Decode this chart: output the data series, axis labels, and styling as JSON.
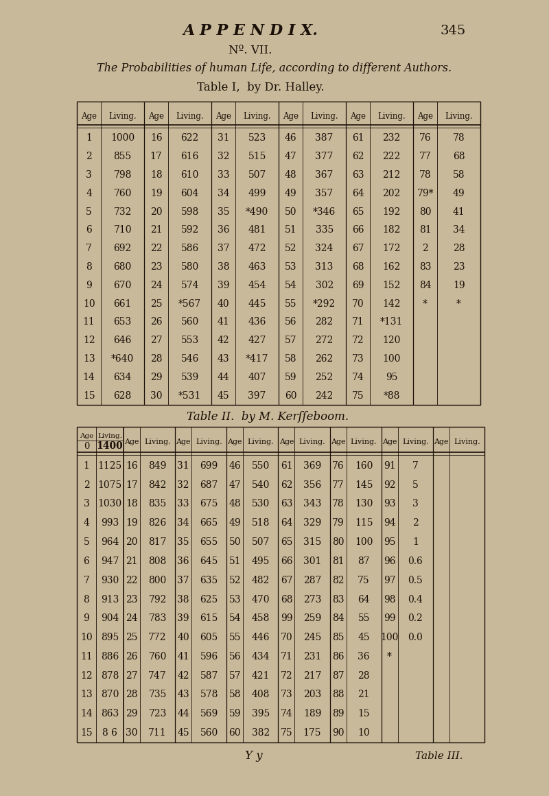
{
  "bg_color": "#c8b99a",
  "title_appendix": "A P P E N D I X.",
  "title_page_num": "345",
  "title_no": "Nº. VII.",
  "title_subtitle": "The Probabilities of human Life, according to different Authors.",
  "table1_title": "Table I,  by Dr. Halley.",
  "table2_title": "Table II.  by M. Kerſſeboom.",
  "footer_left": "Y y",
  "footer_right": "Table III.",
  "table1_rows": [
    [
      "1",
      "1000",
      "16",
      "622",
      "31",
      "523",
      "46",
      "387",
      "61",
      "232",
      "76",
      "78"
    ],
    [
      "2",
      "855",
      "17",
      "616",
      "32",
      "515",
      "47",
      "377",
      "62",
      "222",
      "77",
      "68"
    ],
    [
      "3",
      "798",
      "18",
      "610",
      "33",
      "507",
      "48",
      "367",
      "63",
      "212",
      "78",
      "58"
    ],
    [
      "4",
      "760",
      "19",
      "604",
      "34",
      "499",
      "49",
      "357",
      "64",
      "202",
      "79*",
      "49"
    ],
    [
      "5",
      "732",
      "20",
      "598",
      "35",
      "*490",
      "50",
      "*346",
      "65",
      "192",
      "80",
      "41"
    ],
    [
      "6",
      "710",
      "21",
      "592",
      "36",
      "481",
      "51",
      "335",
      "66",
      "182",
      "81",
      "34"
    ],
    [
      "7",
      "692",
      "22",
      "586",
      "37",
      "472",
      "52",
      "324",
      "67",
      "172",
      "2",
      "28"
    ],
    [
      "8",
      "680",
      "23",
      "580",
      "38",
      "463",
      "53",
      "313",
      "68",
      "162",
      "83",
      "23"
    ],
    [
      "9",
      "670",
      "24",
      "574",
      "39",
      "454",
      "54",
      "302",
      "69",
      "152",
      "84",
      "19"
    ],
    [
      "10",
      "661",
      "25",
      "*567",
      "40",
      "445",
      "55",
      "*292",
      "70",
      "142",
      "*",
      "*"
    ],
    [
      "11",
      "653",
      "26",
      "560",
      "41",
      "436",
      "56",
      "282",
      "71",
      "*131",
      "",
      ""
    ],
    [
      "12",
      "646",
      "27",
      "553",
      "42",
      "427",
      "57",
      "272",
      "72",
      "120",
      "",
      ""
    ],
    [
      "13",
      "*640",
      "28",
      "546",
      "43",
      "*417",
      "58",
      "262",
      "73",
      "100",
      "",
      ""
    ],
    [
      "14",
      "634",
      "29",
      "539",
      "44",
      "407",
      "59",
      "252",
      "74",
      "95",
      "",
      ""
    ],
    [
      "15",
      "628",
      "30",
      "*531",
      "45",
      "397",
      "60",
      "242",
      "75",
      "*88",
      "",
      ""
    ]
  ],
  "table2_rows": [
    [
      "1",
      "1125",
      "16",
      "849",
      "31",
      "699",
      "46",
      "550",
      "61",
      "369",
      "76",
      "160",
      "91",
      "7"
    ],
    [
      "2",
      "1075",
      "17",
      "842",
      "32",
      "687",
      "47",
      "540",
      "62",
      "356",
      "77",
      "145",
      "92",
      "5"
    ],
    [
      "3",
      "1030",
      "18",
      "835",
      "33",
      "675",
      "48",
      "530",
      "63",
      "343",
      "78",
      "130",
      "93",
      "3"
    ],
    [
      "4",
      "993",
      "19",
      "826",
      "34",
      "665",
      "49",
      "518",
      "64",
      "329",
      "79",
      "115",
      "94",
      "2"
    ],
    [
      "5",
      "964",
      "20",
      "817",
      "35",
      "655",
      "50",
      "507",
      "65",
      "315",
      "80",
      "100",
      "95",
      "1"
    ],
    [
      "6",
      "947",
      "21",
      "808",
      "36",
      "645",
      "51",
      "495",
      "66",
      "301",
      "81",
      "87",
      "96",
      "0.6"
    ],
    [
      "7",
      "930",
      "22",
      "800",
      "37",
      "635",
      "52",
      "482",
      "67",
      "287",
      "82",
      "75",
      "97",
      "0.5"
    ],
    [
      "8",
      "913",
      "23",
      "792",
      "38",
      "625",
      "53",
      "470",
      "68",
      "273",
      "83",
      "64",
      "98",
      "0.4"
    ],
    [
      "9",
      "904",
      "24",
      "783",
      "39",
      "615",
      "54",
      "458",
      "99",
      "259",
      "84",
      "55",
      "99",
      "0.2"
    ],
    [
      "10",
      "895",
      "25",
      "772",
      "40",
      "605",
      "55",
      "446",
      "70",
      "245",
      "85",
      "45",
      "100",
      "0.0"
    ],
    [
      "11",
      "886",
      "26",
      "760",
      "41",
      "596",
      "56",
      "434",
      "71",
      "231",
      "86",
      "36",
      "*",
      ""
    ],
    [
      "12",
      "878",
      "27",
      "747",
      "42",
      "587",
      "57",
      "421",
      "72",
      "217",
      "87",
      "28",
      "",
      ""
    ],
    [
      "13",
      "870",
      "28",
      "735",
      "43",
      "578",
      "58",
      "408",
      "73",
      "203",
      "88",
      "21",
      "",
      ""
    ],
    [
      "14",
      "863",
      "29",
      "723",
      "44",
      "569",
      "59",
      "395",
      "74",
      "189",
      "89",
      "15",
      "",
      ""
    ],
    [
      "15",
      "8 6",
      "30",
      "711",
      "45",
      "560",
      "60",
      "382",
      "75",
      "175",
      "90",
      "10",
      "",
      ""
    ]
  ]
}
